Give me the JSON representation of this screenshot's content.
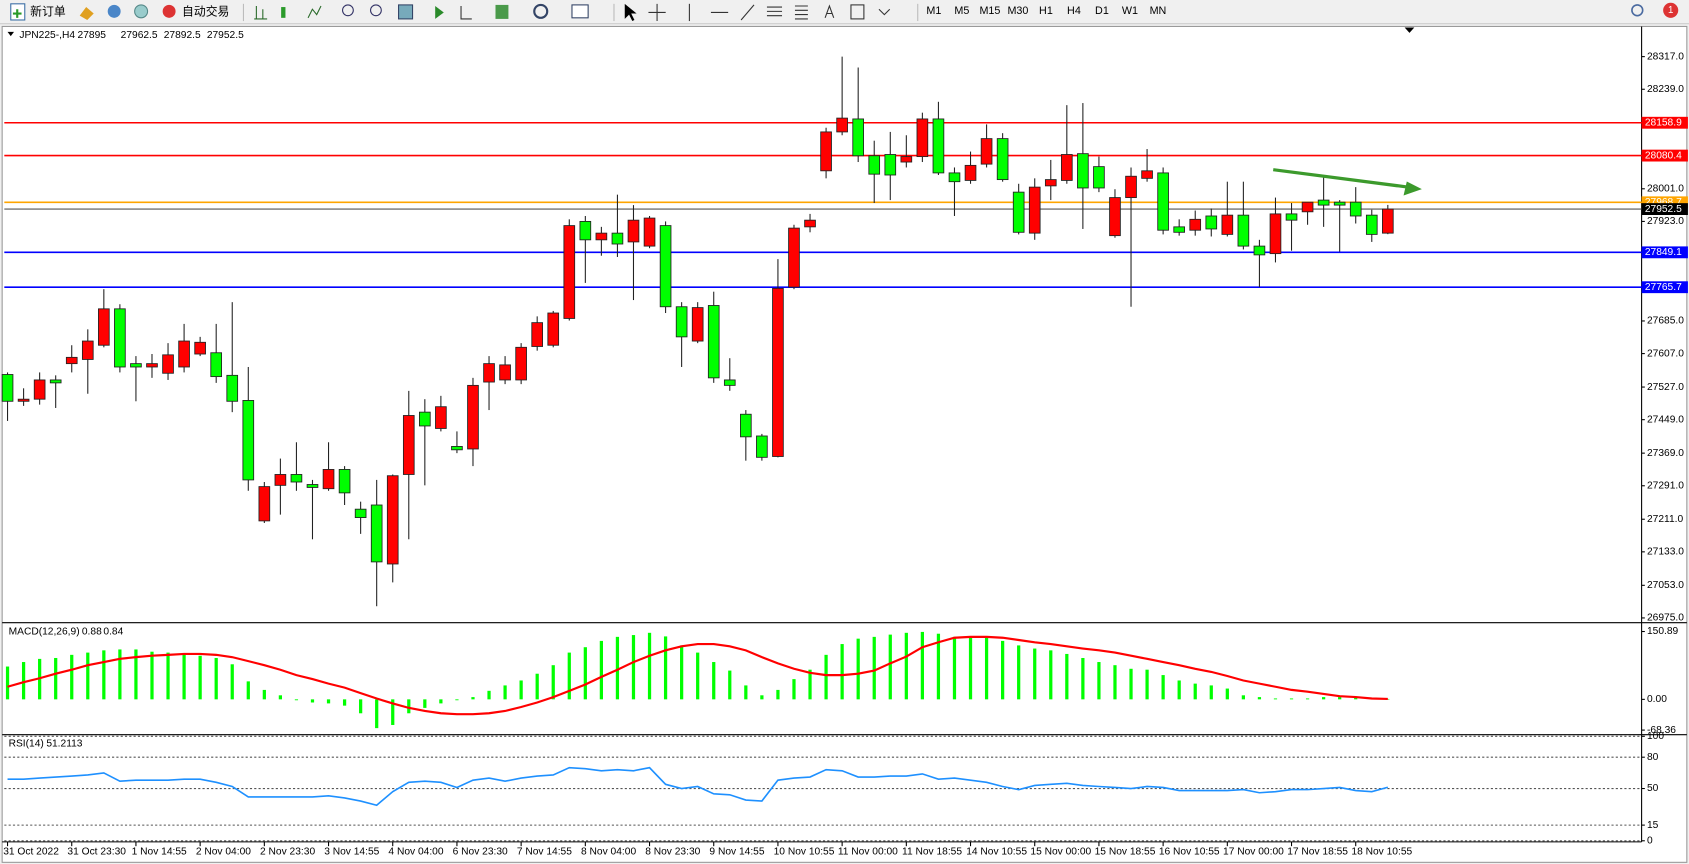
{
  "toolbar": {
    "new_order": "新订单",
    "auto_trading": "自动交易",
    "timeframes": [
      "M1",
      "M5",
      "M15",
      "M30",
      "H1",
      "H4",
      "D1",
      "W1",
      "MN"
    ],
    "notification_count": 1
  },
  "chart_data": [
    {
      "type": "candlestick",
      "title": "JPN225-,H4",
      "categories": [
        "31 Oct 2022",
        null,
        null,
        null,
        "31 Oct 23:30",
        null,
        null,
        null,
        "1 Nov 14:55",
        null,
        null,
        null,
        "2 Nov 04:00",
        null,
        null,
        null,
        "2 Nov 23:30",
        null,
        null,
        null,
        "3 Nov 14:55",
        null,
        null,
        null,
        "4 Nov 04:00",
        null,
        null,
        null,
        "6 Nov 23:30",
        null,
        null,
        null,
        "7 Nov 14:55",
        null,
        null,
        null,
        "8 Nov 04:00",
        null,
        null,
        null,
        "8 Nov 23:30",
        null,
        null,
        null,
        "9 Nov 14:55",
        null,
        null,
        null,
        "10 Nov 10:55",
        null,
        null,
        null,
        "11 Nov 00:00",
        null,
        null,
        null,
        "11 Nov 18:55",
        null,
        null,
        null,
        "14 Nov 10:55",
        null,
        null,
        null,
        "15 Nov 00:00",
        null,
        null,
        null,
        "15 Nov 18:55",
        null,
        null,
        null,
        "16 Nov 10:55",
        null,
        null,
        null,
        "17 Nov 00:00",
        null,
        null,
        null,
        "17 Nov 18:55",
        null,
        null,
        null,
        "18 Nov 10:55",
        null,
        null
      ],
      "open": [
        27557,
        27493,
        27498,
        27544,
        27583,
        27593,
        27627,
        27714,
        27583,
        27575,
        27560,
        27575,
        27606,
        27609,
        27555,
        27495,
        27207,
        27292,
        27318,
        27294,
        27284,
        27330,
        27235,
        27245,
        27104,
        27318,
        27467,
        27428,
        27385,
        27379,
        27539,
        27544,
        27544,
        27624,
        27627,
        27691,
        27923,
        27879,
        27895,
        27874,
        27864,
        27913,
        27719,
        27637,
        27722,
        27544,
        27462,
        27410,
        27361,
        27766,
        27910,
        28044,
        28137,
        28168,
        28080,
        28083,
        28065,
        28078,
        28168,
        28039,
        28021,
        28060,
        28121,
        27993,
        27895,
        28008,
        28021,
        28085,
        28054,
        27889,
        27980,
        28026,
        28039,
        27910,
        27902,
        27936,
        27892,
        27938,
        27864,
        27846,
        27941,
        27946,
        27974,
        27969,
        27969,
        27938,
        27895.0
      ],
      "high": [
        27562,
        27524,
        27562,
        27555,
        27627,
        27665,
        27761,
        27725,
        27601,
        27606,
        27632,
        27678,
        27647,
        27678,
        27730,
        27575,
        27300,
        27356,
        27395,
        27305,
        27395,
        27338,
        27253,
        27305,
        27318,
        27518,
        27498,
        27506,
        27421,
        27549,
        27601,
        27601,
        27632,
        27696,
        27709,
        27928,
        27936,
        27910,
        27987,
        27962,
        27936,
        27923,
        27730,
        27730,
        27755,
        27596,
        27472,
        27415,
        27833,
        27915,
        27941,
        28147,
        28317,
        28291,
        28116,
        28137,
        28129,
        28183,
        28209,
        28052,
        28090,
        28155,
        28134,
        28013,
        28026,
        28070,
        28201,
        28206,
        28078,
        28000,
        28052,
        28096,
        28052,
        27928,
        27949,
        27954,
        28018,
        28018,
        27879,
        27980,
        27967,
        27969,
        28034,
        27974,
        28005,
        27951,
        27962.5
      ],
      "low": [
        27446,
        27482,
        27485,
        27477,
        27562,
        27511,
        27622,
        27562,
        27493,
        27549,
        27544,
        27562,
        27601,
        27537,
        27467,
        27279,
        27202,
        27222,
        27279,
        27163,
        27279,
        27245,
        27176,
        27003,
        27060,
        27163,
        27292,
        27421,
        27369,
        27338,
        27472,
        27534,
        27534,
        27614,
        27622,
        27686,
        27776,
        27841,
        27838,
        27735,
        27859,
        27704,
        27575,
        27632,
        27537,
        27518,
        27351,
        27351,
        27359,
        27761,
        27897,
        28026,
        28129,
        28065,
        27967,
        27974,
        28052,
        28065,
        28034,
        27936,
        28013,
        28052,
        28018,
        27892,
        27879,
        27974,
        28013,
        27905,
        27993,
        27884,
        27719,
        28018,
        27892,
        27889,
        27889,
        27887,
        27887,
        27856,
        27766,
        27825,
        27853,
        27915,
        27910,
        27851,
        27918,
        27874,
        27892.5
      ],
      "close": [
        27493,
        27498,
        27544,
        27537,
        27598,
        27637,
        27714,
        27575,
        27575,
        27583,
        27604,
        27637,
        27634,
        27552,
        27493,
        27305,
        27289,
        27318,
        27300,
        27287,
        27330,
        27274,
        27215,
        27109,
        27315,
        27459,
        27434,
        27480,
        27377,
        27531,
        27583,
        27580,
        27622,
        27681,
        27704,
        27913,
        27879,
        27895,
        27869,
        27926,
        27931,
        27719,
        27647,
        27717,
        27549,
        27531,
        27408,
        27359,
        27763,
        27907,
        27926,
        28137,
        28170,
        28080,
        28036,
        28034,
        28078,
        28168,
        28039,
        28018,
        28057,
        28121,
        28023,
        27897,
        28005,
        28023,
        28083,
        28003,
        28003,
        27980,
        28031,
        28044,
        27902,
        27897,
        27928,
        27905,
        27938,
        27864,
        27843,
        27941,
        27926,
        27969,
        27962,
        27962,
        27936,
        27892,
        27952.5
      ],
      "up_color": "#ff0000",
      "down_color": "#00ff00",
      "wick_color": "#222222",
      "ylim": [
        26965,
        28384
      ],
      "yticks": [
        {
          "value": 28317,
          "label": "28317.0"
        },
        {
          "value": 28239,
          "label": "28239.0"
        },
        {
          "value": 28001,
          "label": "28001.0"
        },
        {
          "value": 27923,
          "label": "27923.0"
        },
        {
          "value": 27685,
          "label": "27685.0"
        },
        {
          "value": 27607,
          "label": "27607.0"
        },
        {
          "value": 27527,
          "label": "27527.0"
        },
        {
          "value": 27449,
          "label": "27449.0"
        },
        {
          "value": 27369,
          "label": "27369.0"
        },
        {
          "value": 27291,
          "label": "27291.0"
        },
        {
          "value": 27211,
          "label": "27211.0"
        },
        {
          "value": 27133,
          "label": "27133.0"
        },
        {
          "value": 27053,
          "label": "27053.0"
        },
        {
          "value": 26975,
          "label": "26975.0"
        }
      ],
      "levels": [
        {
          "value": 28158.9,
          "color": "#ff0000"
        },
        {
          "value": 28080.4,
          "color": "#ff0000"
        },
        {
          "value": 27968.7,
          "color": "#ffa500"
        },
        {
          "value": 27849.1,
          "color": "#0000ff"
        },
        {
          "value": 27765.7,
          "color": "#0000ff"
        }
      ],
      "price_line_color": "#555555"
    },
    {
      "type": "macd",
      "title": "MACD(12,26,9)",
      "series": [
        {
          "name": "MACD",
          "color": "#00ff00",
          "values": [
            73,
            83,
            90,
            92,
            99,
            104,
            109,
            111,
            111,
            106,
            104,
            101,
            97,
            92,
            78,
            40,
            21,
            9,
            -2,
            -7,
            -9,
            -14,
            -31,
            -64,
            -57,
            -31,
            -19,
            -9,
            -2,
            5,
            19,
            31,
            42,
            57,
            76,
            104,
            116,
            130,
            139,
            143,
            148,
            140,
            120,
            104,
            83,
            64,
            31,
            9,
            21,
            45,
            66,
            99,
            123,
            135,
            139,
            144,
            148,
            150,
            146,
            139,
            139,
            137,
            130,
            120,
            113,
            109,
            101,
            92,
            83,
            76,
            68,
            66,
            54,
            42,
            35,
            31,
            24,
            9,
            5,
            2,
            2,
            2,
            5,
            5,
            5,
            2,
            0.88
          ]
        },
        {
          "name": "Signal",
          "color": "#ff0000",
          "values": [
            28,
            38,
            47,
            57,
            66,
            76,
            83,
            90,
            94,
            97,
            99,
            101,
            101,
            99,
            94,
            85,
            76,
            66,
            54,
            45,
            35,
            26,
            14,
            2,
            -9,
            -19,
            -26,
            -31,
            -33,
            -33,
            -31,
            -26,
            -17,
            -7,
            5,
            19,
            33,
            50,
            66,
            83,
            97,
            109,
            118,
            123,
            123,
            118,
            109,
            94,
            80,
            68,
            59,
            54,
            54,
            57,
            64,
            80,
            95,
            116,
            127,
            137,
            139,
            139,
            137,
            132,
            127,
            123,
            118,
            113,
            109,
            104,
            97,
            90,
            83,
            76,
            68,
            61,
            52,
            42,
            35,
            28,
            21,
            17,
            12,
            7,
            5,
            2,
            0.84
          ]
        }
      ],
      "ylim": [
        -75,
        167
      ],
      "yticks": [
        150.89,
        {
          "value": 0,
          "label": "0.00"
        },
        -68.36
      ]
    },
    {
      "type": "rsi",
      "title": "RSI(14)",
      "color": "#1e90ff",
      "values": [
        59,
        59,
        60,
        61,
        62,
        63,
        65,
        57,
        58,
        58,
        58,
        59,
        59,
        56,
        52,
        42,
        42,
        42,
        42,
        42,
        43,
        41,
        38,
        34,
        47,
        56,
        57,
        56,
        51,
        58,
        60,
        57,
        60,
        62,
        63,
        70,
        69,
        67,
        68,
        67,
        70,
        54,
        50,
        52,
        45,
        44,
        39,
        38,
        58,
        60,
        61,
        68,
        67,
        61,
        61,
        62,
        62,
        64,
        59,
        60,
        58,
        56,
        52,
        49,
        53,
        54,
        55,
        53,
        52,
        51,
        50,
        52,
        51,
        48,
        48,
        48,
        48,
        49,
        46,
        47,
        49,
        49,
        50,
        51,
        48,
        47,
        51.2113
      ],
      "ylim": [
        0,
        100
      ],
      "yticks": [
        100,
        80,
        50,
        15,
        0
      ]
    }
  ]
}
